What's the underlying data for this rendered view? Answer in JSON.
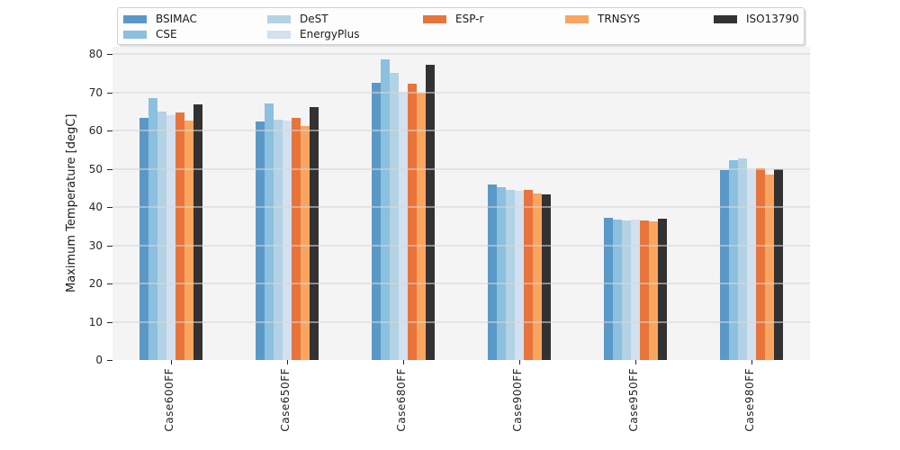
{
  "chart_data": {
    "type": "bar",
    "title": "",
    "categories": [
      "Case600FF",
      "Case650FF",
      "Case680FF",
      "Case900FF",
      "Case950FF",
      "Case980FF"
    ],
    "series": [
      {
        "name": "BSIMAC",
        "color": "#5a99c7",
        "values": [
          63.4,
          62.3,
          72.5,
          45.9,
          37.2,
          49.6
        ]
      },
      {
        "name": "CSE",
        "color": "#8bc0de",
        "values": [
          68.6,
          67.0,
          78.5,
          45.2,
          36.8,
          52.2
        ]
      },
      {
        "name": "DeST",
        "color": "#b3d2e4",
        "values": [
          65.0,
          62.8,
          75.1,
          44.5,
          36.5,
          52.7
        ]
      },
      {
        "name": "EnergyPlus",
        "color": "#d3e0ef",
        "values": [
          64.0,
          62.7,
          70.1,
          44.3,
          36.7,
          49.6
        ]
      },
      {
        "name": "ESP-r",
        "color": "#e8743b",
        "values": [
          64.8,
          63.4,
          72.3,
          44.5,
          36.5,
          50.2
        ]
      },
      {
        "name": "TRNSYS",
        "color": "#faa55f",
        "values": [
          62.6,
          61.2,
          70.0,
          43.5,
          36.2,
          48.5
        ]
      },
      {
        "name": "ISO13790",
        "color": "#323232",
        "values": [
          66.9,
          66.2,
          77.2,
          43.3,
          36.9,
          49.9
        ]
      }
    ],
    "xlabel": "",
    "ylabel": "Maximum Temperature [degC]",
    "yticks": [
      0,
      10,
      20,
      30,
      40,
      50,
      60,
      70,
      80
    ],
    "ylim": [
      0,
      81.9
    ],
    "grid": true,
    "legend_position": "top center, framed box, 2 rows x 5 columns",
    "legend_columns": [
      [
        0,
        1
      ],
      [
        2,
        3
      ],
      [
        4
      ],
      [
        5
      ],
      [
        6
      ]
    ],
    "plot_background": "#f4f4f4",
    "figure_background": "#ffffff"
  }
}
